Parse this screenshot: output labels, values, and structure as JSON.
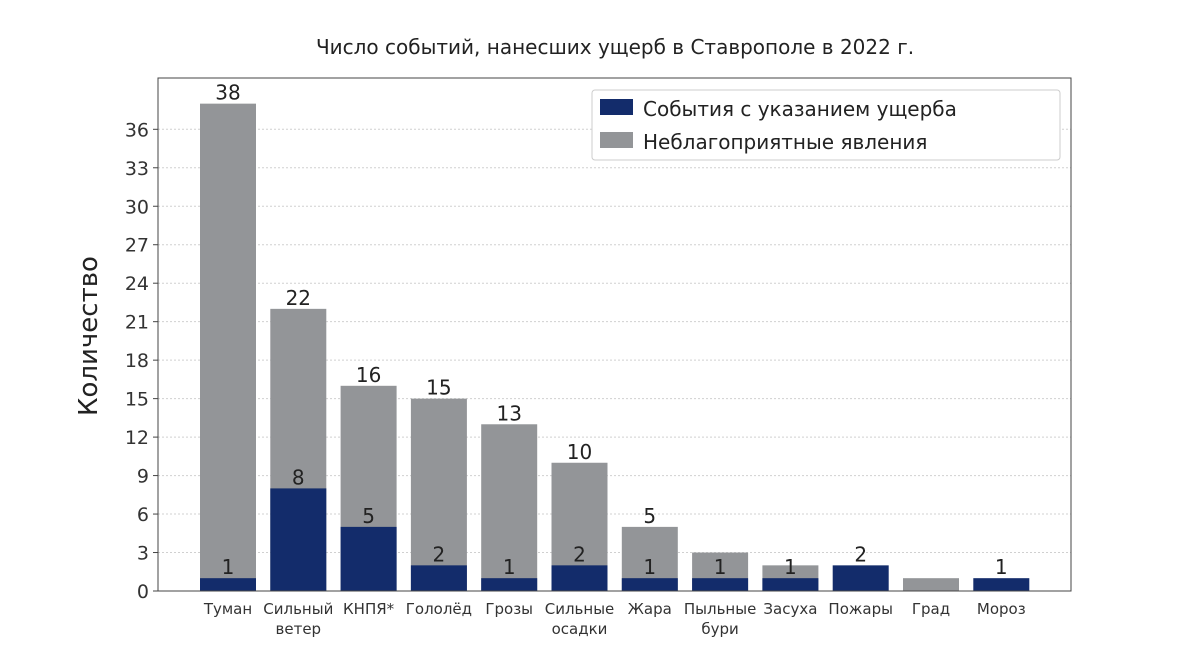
{
  "chart_data": {
    "type": "bar",
    "stacked": false,
    "overlay": true,
    "title": "Число событий, нанесших ущерб в Ставрополе в 2022 г.",
    "xlabel": "",
    "ylabel": "Количество",
    "ylim": [
      0,
      40
    ],
    "yticks": [
      0,
      3,
      6,
      9,
      12,
      15,
      18,
      21,
      24,
      27,
      30,
      33,
      36
    ],
    "grid": true,
    "legend_position": "top-right",
    "categories": [
      "Туман",
      "Сильный\nветер",
      "КНПЯ*",
      "Гололёд",
      "Грозы",
      "Сильные\nосадки",
      "Жара",
      "Пыльные\nбури",
      "Засуха",
      "Пожары",
      "Град",
      "Мороз"
    ],
    "series": [
      {
        "name": "Неблагоприятные явления",
        "color": "#939598",
        "values": [
          38,
          22,
          16,
          15,
          13,
          10,
          5,
          3,
          2,
          0,
          1,
          0
        ],
        "labels": [
          "38",
          "22",
          "16",
          "15",
          "13",
          "10",
          "5",
          "",
          "",
          "",
          "",
          ""
        ]
      },
      {
        "name": "События с указанием ущерба",
        "color": "#132c6b",
        "values": [
          1,
          8,
          5,
          2,
          1,
          2,
          1,
          1,
          1,
          2,
          0,
          1
        ],
        "labels": [
          "1",
          "8",
          "5",
          "2",
          "1",
          "2",
          "1",
          "1",
          "1",
          "2",
          "",
          "1"
        ]
      }
    ]
  }
}
